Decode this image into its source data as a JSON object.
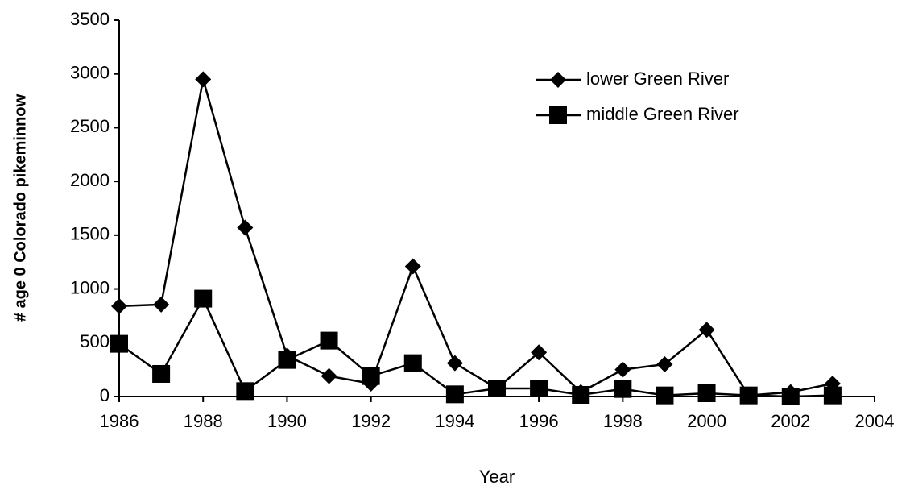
{
  "chart_data": {
    "type": "line",
    "xlabel": "Year",
    "ylabel": "# age 0 Colorado pikeminnow",
    "x": [
      1986,
      1987,
      1988,
      1989,
      1990,
      1991,
      1992,
      1993,
      1994,
      1995,
      1996,
      1997,
      1998,
      1999,
      2000,
      2001,
      2002,
      2003
    ],
    "series": [
      {
        "name": "lower Green River",
        "color": "#000000",
        "marker": "diamond",
        "values": [
          840,
          855,
          2950,
          1570,
          380,
          190,
          120,
          1210,
          310,
          75,
          410,
          40,
          250,
          300,
          620,
          10,
          40,
          120
        ]
      },
      {
        "name": "middle Green River",
        "color": "#000000",
        "marker": "square",
        "values": [
          490,
          210,
          910,
          50,
          340,
          520,
          190,
          310,
          20,
          75,
          75,
          15,
          70,
          10,
          30,
          10,
          0,
          10
        ]
      }
    ],
    "xlim": [
      1986,
      2004
    ],
    "xticks": [
      1986,
      1988,
      1990,
      1992,
      1994,
      1996,
      1998,
      2000,
      2002,
      2004
    ],
    "ylim": [
      0,
      3500
    ],
    "yticks": [
      0,
      500,
      1000,
      1500,
      2000,
      2500,
      3000,
      3500
    ],
    "grid": false,
    "legend": "upper right"
  }
}
